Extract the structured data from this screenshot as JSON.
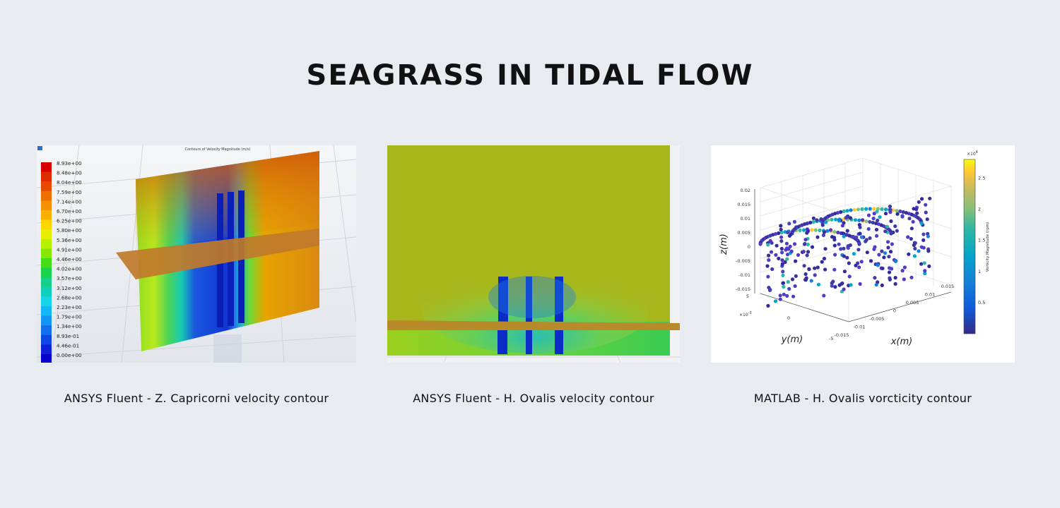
{
  "page": {
    "title": "SEAGRASS IN TIDAL FLOW"
  },
  "panels": [
    {
      "caption": "ANSYS Fluent - Z. Capricorni velocity contour",
      "plot_title": "Contours of Velocity Magnitude (m/s)",
      "colorbar_labels": [
        "8.93e+00",
        "8.48e+00",
        "8.04e+00",
        "7.59e+00",
        "7.14e+00",
        "6.70e+00",
        "6.25e+00",
        "5.80e+00",
        "5.36e+00",
        "4.91e+00",
        "4.46e+00",
        "4.02e+00",
        "3.57e+00",
        "3.12e+00",
        "2.68e+00",
        "2.23e+00",
        "1.79e+00",
        "1.34e+00",
        "8.93e-01",
        "4.46e-01",
        "0.00e+00"
      ],
      "colorbar_colors": [
        "#d50000",
        "#e02a00",
        "#e84b00",
        "#ee6e00",
        "#f59000",
        "#f9b000",
        "#ffd500",
        "#e6ef00",
        "#b8f000",
        "#86e800",
        "#43dc17",
        "#19d34a",
        "#14d08a",
        "#12cfbb",
        "#14d6e8",
        "#11b8f5",
        "#1694f5",
        "#146ff0",
        "#1046e4",
        "#0b22d8",
        "#0700ca"
      ]
    },
    {
      "caption": "ANSYS Fluent - H. Ovalis velocity contour"
    },
    {
      "caption": "MATLAB - H. Ovalis vorcticity contour",
      "colorbar_exponent": "×10",
      "colorbar_exponent_power": "4",
      "colorbar_ticks": [
        "2.5",
        "2",
        "1.5",
        "1",
        "0.5"
      ],
      "colorbar_label": "Vorticity Magnitude (rpm)",
      "z_label": "z(m)",
      "y_label": "y(m)",
      "x_label": "x(m)",
      "z_ticks": [
        "0.02",
        "0.015",
        "0.01",
        "0.005",
        "0",
        "-0.005",
        "-0.01",
        "-0.015"
      ],
      "y_exponent": "×10",
      "y_exponent_power": "-3",
      "y_ticks": [
        "5",
        "0",
        "-5"
      ],
      "x_ticks": [
        "-0.015",
        "-0.01",
        "-0.005",
        "0",
        "0.005",
        "0.01",
        "0.015"
      ]
    }
  ]
}
